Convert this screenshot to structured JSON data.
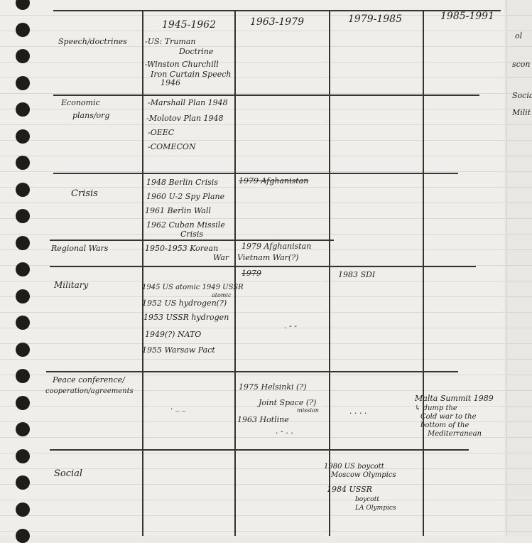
{
  "columns": [
    "1945-1962",
    "1963-1979",
    "1979-1985",
    "1985-1991"
  ],
  "rows": {
    "speech": {
      "label": "Speech/doctrines",
      "c1": [
        "-US: Truman",
        "Doctrine",
        "-Winston Churchill",
        "Iron Curtain Speech",
        "1946"
      ]
    },
    "economic": {
      "label": [
        "Economic",
        "plans/org"
      ],
      "c1": [
        "-Marshall Plan 1948",
        "-Molotov Plan 1948",
        "-OEEC",
        "-COMECON"
      ]
    },
    "crisis": {
      "label": "Crisis",
      "c1": [
        "1948 Berlin Crisis",
        "1960 U-2 Spy Plane",
        "1961 Berlin Wall",
        "1962 Cuban Missile",
        "Crisis"
      ],
      "c2_struck": "1979 Afghanistan"
    },
    "regional": {
      "label": "Regional Wars",
      "c1": [
        "1950-1953 Korean",
        "War"
      ],
      "c2": [
        "1979 Afghanistan",
        "Vietnam War(?)"
      ]
    },
    "military": {
      "label": "Military",
      "c1": [
        "1945 US atomic 1949 USSR",
        "atomic",
        "1952 US hydrogen(?)",
        "1953 USSR hydrogen",
        "1949(?) NATO",
        "1955 Warsaw Pact"
      ],
      "c2_struck": "1979",
      "c3": "1983 SDI",
      "dots": ". - -"
    },
    "peace": {
      "label": [
        "Peace conference/",
        "cooperation/agreements"
      ],
      "c1_dots": ". _ _",
      "c2": [
        "1975 Helsinki (?)",
        "Joint Space (?)",
        "mission",
        "1963 Hotline",
        ". - . ."
      ],
      "c3_dots": ". . . .",
      "c4": [
        "Malta Summit 1989",
        "↳ dump the",
        "Cold war to the",
        "bottom of the",
        "Mediterranean"
      ]
    },
    "social": {
      "label": "Social",
      "c3": [
        "1980 US boycott",
        "Moscow Olympics",
        "1984 USSR",
        "boycott",
        "LA Olympics"
      ]
    }
  },
  "next_page": [
    "ol",
    "scon",
    "Socia",
    "Milit"
  ]
}
